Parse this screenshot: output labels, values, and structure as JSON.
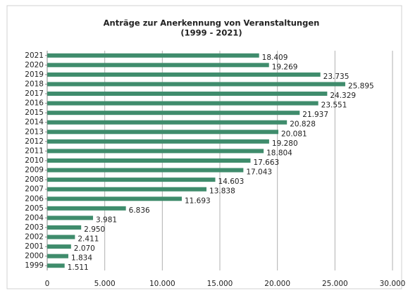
{
  "chart_data": {
    "type": "bar",
    "orientation": "horizontal",
    "title": "Anträge zur Anerkennung von Veranstaltungen",
    "subtitle": "(1999 - 2021)",
    "categories": [
      "2021",
      "2020",
      "2019",
      "2018",
      "2017",
      "2016",
      "2015",
      "2014",
      "2013",
      "2012",
      "2011",
      "2010",
      "2009",
      "2008",
      "2007",
      "2006",
      "2005",
      "2004",
      "2003",
      "2002",
      "2001",
      "2000",
      "1999"
    ],
    "values": [
      18409,
      19269,
      23735,
      25895,
      24329,
      23551,
      21937,
      20828,
      20081,
      19280,
      18804,
      17663,
      17043,
      14603,
      13838,
      11693,
      6836,
      3981,
      2950,
      2411,
      2070,
      1834,
      1511
    ],
    "value_labels": [
      "18.409",
      "19.269",
      "23.735",
      "25.895",
      "24.329",
      "23.551",
      "21.937",
      "20.828",
      "20.081",
      "19.280",
      "18.804",
      "17.663",
      "17.043",
      "14.603",
      "13.838",
      "11.693",
      "6.836",
      "3.981",
      "2.950",
      "2.411",
      "2.070",
      "1.834",
      "1.511"
    ],
    "color": "#3f8c6c",
    "xlim": [
      0,
      30000
    ],
    "xticks": [
      0,
      {
        "value": 5000,
        "label": "5.000"
      },
      {
        "value": 10000,
        "label": "10.000"
      },
      {
        "value": 15000,
        "label": "15.000"
      },
      {
        "value": 20000,
        "label": "20.000"
      },
      {
        "value": 25000,
        "label": "25.000"
      },
      {
        "value": 30000,
        "label": "30.000"
      }
    ],
    "grid": true
  }
}
